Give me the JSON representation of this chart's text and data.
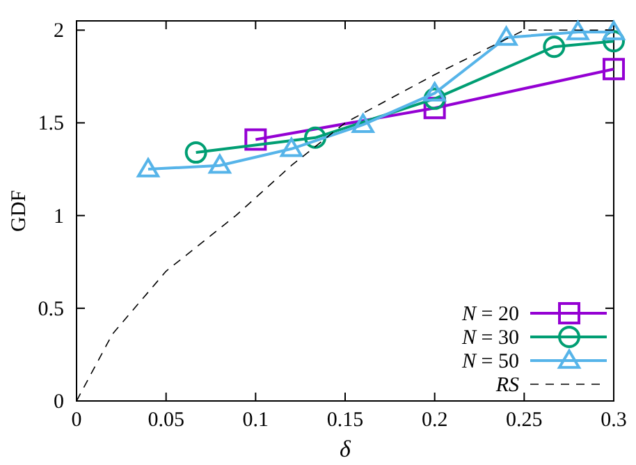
{
  "chart_data": {
    "type": "line",
    "xlabel": "δ",
    "ylabel": "GDF",
    "xlim": [
      0,
      0.3
    ],
    "ylim": [
      0,
      2.05
    ],
    "xticks": [
      0,
      0.05,
      0.1,
      0.15,
      0.2,
      0.25,
      0.3
    ],
    "yticks": [
      0,
      0.5,
      1,
      1.5,
      2
    ],
    "grid": false,
    "legend": "bottom right",
    "series": [
      {
        "name": "N = 20",
        "color": "#9400d3",
        "marker": "square",
        "line_style": "solid",
        "x": [
          0.1,
          0.2,
          0.3
        ],
        "values": [
          1.41,
          1.58,
          1.79
        ]
      },
      {
        "name": "N = 30",
        "color": "#009e73",
        "marker": "circle",
        "line_style": "solid",
        "x": [
          0.0667,
          0.1333,
          0.2,
          0.2667,
          0.3
        ],
        "values": [
          1.34,
          1.42,
          1.63,
          1.91,
          1.94
        ]
      },
      {
        "name": "N = 50",
        "color": "#56b4e9",
        "marker": "triangle",
        "line_style": "solid",
        "x": [
          0.04,
          0.08,
          0.12,
          0.16,
          0.2,
          0.24,
          0.28,
          0.3
        ],
        "values": [
          1.25,
          1.27,
          1.36,
          1.49,
          1.66,
          1.96,
          1.99,
          1.99
        ]
      },
      {
        "name": "RS",
        "color": "#000000",
        "marker": "none",
        "line_style": "dashed",
        "x": [
          0,
          0.02,
          0.05,
          0.089,
          0.12,
          0.15,
          0.2,
          0.25,
          0.3
        ],
        "values": [
          0,
          0.36,
          0.7,
          1.0,
          1.27,
          1.5,
          1.76,
          2.0,
          2.0
        ]
      }
    ]
  }
}
